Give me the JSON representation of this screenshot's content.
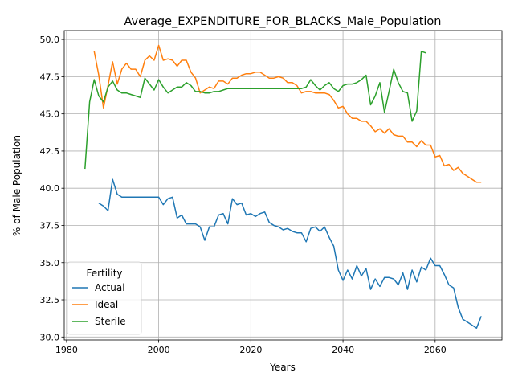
{
  "chart_data": {
    "type": "line",
    "title": "Average_EXPENDITURE_FOR_BLACKS_Male_Population",
    "xlabel": "Years",
    "ylabel": "% of Male Population",
    "xlim": [
      1979.5,
      2074.5
    ],
    "ylim": [
      29.8,
      50.6
    ],
    "xticks": [
      1980,
      2000,
      2020,
      2040,
      2060
    ],
    "xtick_labels": [
      "1980",
      "2000",
      "2020",
      "2040",
      "2060"
    ],
    "yticks": [
      30.0,
      32.5,
      35.0,
      37.5,
      40.0,
      42.5,
      45.0,
      47.5,
      50.0
    ],
    "ytick_labels": [
      "30.0",
      "32.5",
      "35.0",
      "37.5",
      "40.0",
      "42.5",
      "45.0",
      "47.5",
      "50.0"
    ],
    "grid": true,
    "legend": {
      "title": "Fertility",
      "placement": "lower-left"
    },
    "series": [
      {
        "name": "Actual",
        "color": "#1f77b4",
        "x": [
          1987,
          1988,
          1989,
          1990,
          1991,
          1992,
          1993,
          1994,
          1995,
          1996,
          1997,
          1998,
          1999,
          2000,
          2001,
          2002,
          2003,
          2004,
          2005,
          2006,
          2007,
          2008,
          2009,
          2010,
          2011,
          2012,
          2013,
          2014,
          2015,
          2016,
          2017,
          2018,
          2019,
          2020,
          2021,
          2022,
          2023,
          2024,
          2025,
          2026,
          2027,
          2028,
          2029,
          2030,
          2031,
          2032,
          2033,
          2034,
          2035,
          2036,
          2037,
          2038,
          2039,
          2040,
          2041,
          2042,
          2043,
          2044,
          2045,
          2046,
          2047,
          2048,
          2049,
          2050,
          2051,
          2052,
          2053,
          2054,
          2055,
          2056,
          2057,
          2058,
          2059,
          2060,
          2061,
          2062,
          2063,
          2064,
          2065,
          2066,
          2067,
          2068,
          2069,
          2070
        ],
        "values": [
          39.0,
          38.8,
          38.5,
          40.6,
          39.6,
          39.4,
          39.4,
          39.4,
          39.4,
          39.4,
          39.4,
          39.4,
          39.4,
          39.4,
          38.9,
          39.3,
          39.4,
          38.0,
          38.2,
          37.6,
          37.6,
          37.6,
          37.4,
          36.5,
          37.4,
          37.4,
          38.2,
          38.3,
          37.6,
          39.3,
          38.9,
          39.0,
          38.2,
          38.3,
          38.1,
          38.3,
          38.4,
          37.7,
          37.5,
          37.4,
          37.2,
          37.3,
          37.1,
          37.0,
          37.0,
          36.4,
          37.3,
          37.4,
          37.1,
          37.4,
          36.7,
          36.1,
          34.5,
          33.8,
          34.5,
          33.9,
          34.8,
          34.1,
          34.6,
          33.2,
          33.9,
          33.4,
          34.0,
          34.0,
          33.9,
          33.5,
          34.3,
          33.2,
          34.5,
          33.7,
          34.7,
          34.5,
          35.3,
          34.8,
          34.8,
          34.2,
          33.5,
          33.3,
          32.0,
          31.2,
          31.0,
          30.8,
          30.6,
          31.4
        ]
      },
      {
        "name": "Ideal",
        "color": "#ff7f0e",
        "x": [
          1986,
          1987,
          1988,
          1989,
          1990,
          1991,
          1992,
          1993,
          1994,
          1995,
          1996,
          1997,
          1998,
          1999,
          2000,
          2001,
          2002,
          2003,
          2004,
          2005,
          2006,
          2007,
          2008,
          2009,
          2010,
          2011,
          2012,
          2013,
          2014,
          2015,
          2016,
          2017,
          2018,
          2019,
          2020,
          2021,
          2022,
          2023,
          2024,
          2025,
          2026,
          2027,
          2028,
          2029,
          2030,
          2031,
          2032,
          2033,
          2034,
          2035,
          2036,
          2037,
          2038,
          2039,
          2040,
          2041,
          2042,
          2043,
          2044,
          2045,
          2046,
          2047,
          2048,
          2049,
          2050,
          2051,
          2052,
          2053,
          2054,
          2055,
          2056,
          2057,
          2058,
          2059,
          2060,
          2061,
          2062,
          2063,
          2064,
          2065,
          2066,
          2067,
          2068,
          2069,
          2070
        ],
        "values": [
          49.2,
          47.6,
          45.4,
          46.9,
          48.5,
          47.0,
          48.0,
          48.4,
          48.0,
          48.0,
          47.5,
          48.6,
          48.9,
          48.6,
          49.6,
          48.6,
          48.7,
          48.6,
          48.2,
          48.6,
          48.6,
          47.8,
          47.4,
          46.4,
          46.6,
          46.8,
          46.7,
          47.2,
          47.2,
          47.0,
          47.4,
          47.4,
          47.6,
          47.7,
          47.7,
          47.8,
          47.8,
          47.6,
          47.4,
          47.4,
          47.5,
          47.4,
          47.1,
          47.1,
          46.9,
          46.4,
          46.5,
          46.5,
          46.4,
          46.4,
          46.4,
          46.3,
          45.9,
          45.4,
          45.5,
          45.0,
          44.7,
          44.7,
          44.5,
          44.5,
          44.2,
          43.8,
          44.0,
          43.7,
          44.0,
          43.6,
          43.5,
          43.5,
          43.1,
          43.1,
          42.8,
          43.2,
          42.9,
          42.9,
          42.1,
          42.2,
          41.5,
          41.6,
          41.2,
          41.4,
          41.0,
          40.8,
          40.6,
          40.4,
          40.4
        ]
      },
      {
        "name": "Sterile",
        "color": "#2ca02c",
        "x": [
          1984,
          1985,
          1986,
          1987,
          1988,
          1989,
          1990,
          1991,
          1992,
          1993,
          1994,
          1995,
          1996,
          1997,
          1998,
          1999,
          2000,
          2001,
          2002,
          2003,
          2004,
          2005,
          2006,
          2007,
          2008,
          2009,
          2010,
          2011,
          2012,
          2013,
          2014,
          2015,
          2016,
          2017,
          2018,
          2019,
          2020,
          2021,
          2022,
          2023,
          2024,
          2025,
          2026,
          2027,
          2028,
          2029,
          2030,
          2031,
          2032,
          2033,
          2034,
          2035,
          2036,
          2037,
          2038,
          2039,
          2040,
          2041,
          2042,
          2043,
          2044,
          2045,
          2046,
          2047,
          2048,
          2049,
          2050,
          2051,
          2052,
          2053,
          2054,
          2055,
          2056,
          2057,
          2058
        ],
        "values": [
          41.3,
          45.8,
          47.3,
          46.2,
          45.8,
          46.8,
          47.2,
          46.6,
          46.4,
          46.4,
          46.3,
          46.2,
          46.1,
          47.4,
          47.0,
          46.6,
          47.3,
          46.8,
          46.4,
          46.6,
          46.8,
          46.8,
          47.1,
          46.9,
          46.5,
          46.5,
          46.4,
          46.4,
          46.5,
          46.5,
          46.6,
          46.7,
          46.7,
          46.7,
          46.7,
          46.7,
          46.7,
          46.7,
          46.7,
          46.7,
          46.7,
          46.7,
          46.7,
          46.7,
          46.7,
          46.7,
          46.7,
          46.7,
          46.8,
          47.3,
          46.9,
          46.6,
          46.9,
          47.1,
          46.7,
          46.5,
          46.9,
          47.0,
          47.0,
          47.1,
          47.3,
          47.6,
          45.6,
          46.2,
          47.1,
          45.1,
          46.5,
          48.0,
          47.1,
          46.5,
          46.4,
          44.5,
          45.2,
          49.2,
          49.1
        ]
      }
    ]
  }
}
